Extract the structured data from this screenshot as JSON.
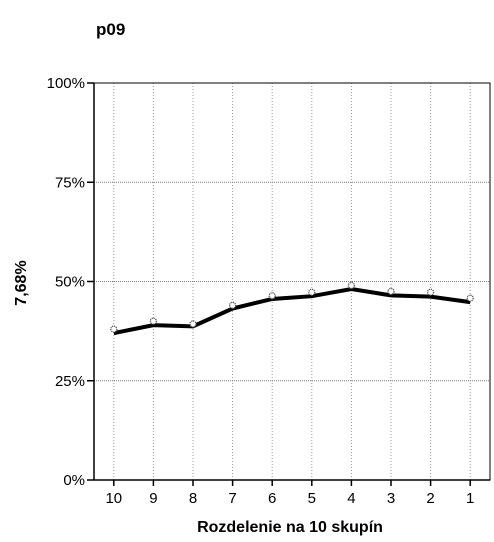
{
  "chart_data": {
    "type": "line",
    "title": "p09",
    "xlabel": "Rozdelenie na 10 skupín",
    "ylabel": "7,68%",
    "categories": [
      "10",
      "9",
      "8",
      "7",
      "6",
      "5",
      "4",
      "3",
      "2",
      "1"
    ],
    "series": [
      {
        "values": [
          37,
          39,
          38.7,
          43.2,
          45.6,
          46.3,
          48.1,
          46.5,
          46.2,
          44.8
        ],
        "style": "line"
      },
      {
        "values": [
          38,
          40,
          39.3,
          44,
          46.4,
          47.3,
          49,
          47.5,
          47.3,
          45.8
        ],
        "style": "markers"
      }
    ],
    "yticks": [
      "0%",
      "25%",
      "50%",
      "75%",
      "100%"
    ],
    "ylim": [
      0,
      100
    ],
    "grid": true,
    "legend": "none",
    "colors": {
      "line": "#000000",
      "marker_fill": "#ffffff",
      "marker_stroke": "#555555",
      "grid": "#9a9a9a"
    }
  }
}
